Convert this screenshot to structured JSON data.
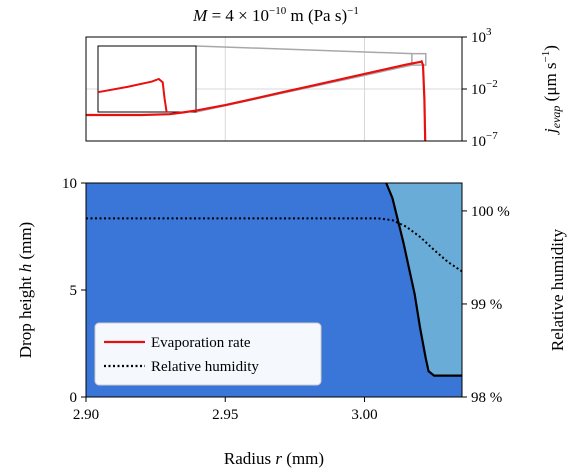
{
  "chart_data": [
    {
      "id": "top",
      "type": "line",
      "title": "M = 4 × 10^−10 m (Pa s)^−1",
      "title_parts": {
        "sym": "M",
        "eq": " = 4 × 10",
        "exp": "−10",
        "unit": " m  (Pa s)",
        "unit_exp": "−1"
      },
      "xlim": [
        2.9,
        3.035
      ],
      "ylim_log10": [
        -7,
        3
      ],
      "yscale": "log",
      "y_side": "right",
      "ylabel": {
        "sym": "j",
        "sub": "evap",
        "unit": " (μm s",
        "unit_exp": "−1",
        "close": ")"
      },
      "yticks": [
        {
          "base": "10",
          "exp": "3",
          "v": 3
        },
        {
          "base": "10",
          "exp": "−2",
          "v": -2
        },
        {
          "base": "10",
          "exp": "−7",
          "v": -7
        }
      ],
      "xgrid": [
        2.95,
        3.0
      ],
      "grid": true,
      "series": [
        {
          "name": "Evaporation rate",
          "color": "#e8100e",
          "x": [
            2.9,
            2.92,
            2.93,
            2.935,
            2.94,
            2.95,
            2.96,
            2.97,
            2.98,
            2.99,
            3.0,
            3.01,
            3.015,
            3.02,
            3.0205,
            3.021,
            3.0215,
            3.0218
          ],
          "log10_y": [
            -4.5,
            -4.5,
            -4.42,
            -4.25,
            -4.05,
            -3.55,
            -2.95,
            -2.35,
            -1.75,
            -1.15,
            -0.55,
            0.05,
            0.35,
            0.6,
            0.65,
            0.3,
            -3.0,
            -7.0
          ]
        }
      ],
      "inset": {
        "color": "#e8100e",
        "x": [
          0.0,
          0.3,
          0.55,
          0.62,
          0.66,
          0.68,
          0.7
        ],
        "y": [
          0.3,
          0.38,
          0.46,
          0.5,
          0.45,
          0.2,
          0.0
        ],
        "zoom_box_x": [
          3.017,
          3.022
        ],
        "zoom_box_log10_y": [
          0.3,
          1.4
        ]
      }
    },
    {
      "id": "bottom",
      "type": "area",
      "xlabel": {
        "text": "Radius ",
        "sym": "r",
        "unit": " (mm)"
      },
      "ylabel_left": {
        "text": "Drop height ",
        "sym": "h",
        "unit": " (mm)"
      },
      "ylabel_right": "Relative humidity",
      "xlim": [
        2.9,
        3.035
      ],
      "ylim": [
        0,
        10
      ],
      "ylim_right": [
        98,
        100.3
      ],
      "xticks": [
        {
          "label": "2.90",
          "v": 2.9
        },
        {
          "label": "2.95",
          "v": 2.95
        },
        {
          "label": "3.00",
          "v": 3.0
        }
      ],
      "yticks": [
        {
          "label": "0",
          "v": 0
        },
        {
          "label": "5",
          "v": 5
        },
        {
          "label": "10",
          "v": 10
        }
      ],
      "yticks_right": [
        {
          "label": "98 %",
          "v": 98
        },
        {
          "label": "99 %",
          "v": 99
        },
        {
          "label": "100 %",
          "v": 100
        }
      ],
      "fill_color": "#3a75d8",
      "drop_fill_color": "#6aacd8",
      "drop_profile": {
        "color": "#000000",
        "x": [
          3.0078,
          3.01,
          3.014,
          3.018,
          3.02,
          3.022,
          3.023,
          3.025,
          3.03,
          3.035
        ],
        "y": [
          10.0,
          9.3,
          7.2,
          4.8,
          3.2,
          1.8,
          1.2,
          1.0,
          1.0,
          1.0
        ]
      },
      "series": [
        {
          "name": "Relative humidity",
          "color": "#000000",
          "style": "dotted",
          "x": [
            2.9,
            2.95,
            3.0,
            3.005,
            3.01,
            3.015,
            3.02,
            3.025,
            3.03,
            3.035
          ],
          "y": [
            99.92,
            99.92,
            99.92,
            99.92,
            99.9,
            99.83,
            99.72,
            99.58,
            99.45,
            99.35
          ]
        }
      ],
      "legend": {
        "position": "lower-left",
        "items": [
          {
            "label": "Evaporation rate",
            "color": "#e8100e",
            "style": "solid"
          },
          {
            "label": "Relative humidity",
            "color": "#000000",
            "style": "dotted"
          }
        ]
      }
    }
  ]
}
